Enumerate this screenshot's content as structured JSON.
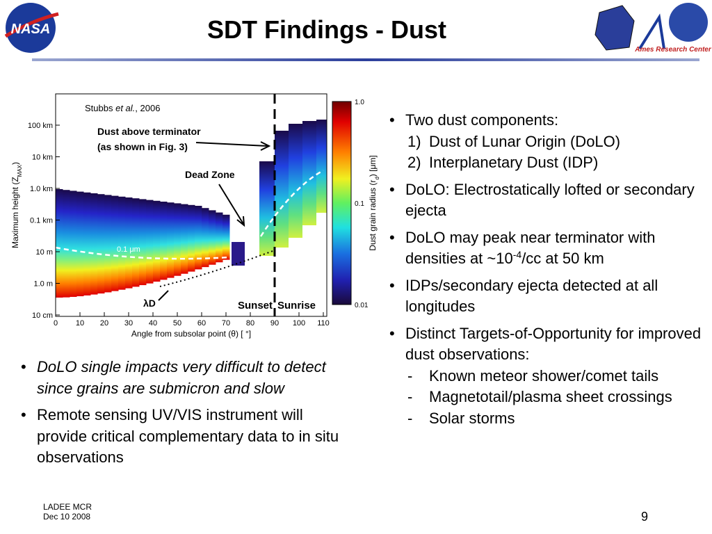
{
  "header": {
    "title": "SDT Findings - Dust",
    "logo_left_text": "NASA",
    "logo_right_text": "Ames Research Center"
  },
  "figure": {
    "credit": [
      "Stubbs ",
      "et al.",
      ", 2006"
    ],
    "annotation_terminator": [
      "Dust above terminator",
      "(as shown in Fig. 3)"
    ],
    "annotation_dead_zone": "Dead Zone",
    "annotation_radius": "0.1 μm",
    "annotation_lambda": "λD",
    "sunset": "Sunset",
    "sunrise": "Sunrise",
    "y_axis_label": [
      "Maximum height (Z",
      "MAX",
      ")"
    ],
    "y_ticks": [
      "100 km",
      "10 km",
      "1.0 km",
      "0.1 km",
      "10 m",
      "1.0 m",
      "10 cm"
    ],
    "x_ticks": [
      "0",
      "10",
      "20",
      "30",
      "40",
      "50",
      "60",
      "70",
      "80",
      "90",
      "100",
      "110"
    ],
    "x_axis_label": "Angle from subsolar point (θ) [ °]",
    "colorbar_ticks": [
      "1.0",
      "0.1",
      "0.01"
    ],
    "colorbar_label": [
      "Dust grain radius (r",
      "d",
      ") [μm]"
    ]
  },
  "right_bullets": [
    {
      "marker": "•",
      "parts": [
        "Two dust components:"
      ],
      "sub": [
        {
          "marker": "1)",
          "text": "Dust of Lunar Origin (DoLO)"
        },
        {
          "marker": "2)",
          "text": "Interplanetary Dust (IDP)"
        }
      ]
    },
    {
      "marker": "•",
      "parts": [
        "DoLO: Electrostatically lofted or secondary ejecta"
      ]
    },
    {
      "marker": "•",
      "parts": [
        "DoLO may peak near terminator with densities at ~10",
        "-4",
        "/cc at 50 km"
      ]
    },
    {
      "marker": "•",
      "parts": [
        "IDPs/secondary ejecta detected at all longitudes"
      ]
    },
    {
      "marker": "•",
      "parts": [
        "Distinct Targets-of-Opportunity for improved dust observations:"
      ],
      "sub": [
        {
          "marker": "-",
          "text": "Known meteor shower/comet tails"
        },
        {
          "marker": "-",
          "text": "Magnetotail/plasma sheet crossings"
        },
        {
          "marker": "-",
          "text": "Solar storms"
        }
      ]
    }
  ],
  "left_bullets": [
    {
      "marker": "•",
      "parts": [
        "DoLO single impacts very difficult to detect since grains are submicron and slow"
      ]
    },
    {
      "marker": "•",
      "parts": [
        "Remote sensing UV/VIS instrument will provide critical complementary data to in situ observations"
      ]
    }
  ],
  "footer": {
    "lines": [
      "LADEE MCR",
      "Dec 10 2008"
    ],
    "page": "9"
  }
}
